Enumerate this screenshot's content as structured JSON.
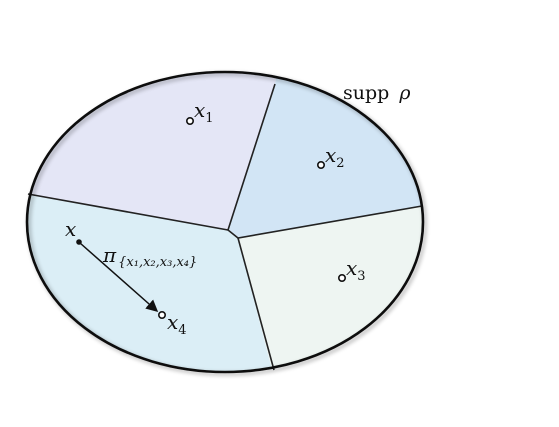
{
  "support_label": {
    "text": "supp",
    "symbol": "ρ"
  },
  "regions": [
    {
      "id": "region-1",
      "fill": "#e4e6f6"
    },
    {
      "id": "region-2",
      "fill": "#d2e5f5"
    },
    {
      "id": "region-3",
      "fill": "#eef5f2"
    },
    {
      "id": "region-4",
      "fill": "#dbeef6"
    }
  ],
  "points": {
    "x1": {
      "base": "x",
      "sub": "1"
    },
    "x2": {
      "base": "x",
      "sub": "2"
    },
    "x3": {
      "base": "x",
      "sub": "3"
    },
    "x4": {
      "base": "x",
      "sub": "4"
    }
  },
  "source_point": {
    "label": "x"
  },
  "projection": {
    "symbol": "π",
    "subscript": "{x₁,x₂,x₃,x₄}"
  },
  "colors": {
    "outline": "#111111",
    "arrow": "#111111"
  }
}
